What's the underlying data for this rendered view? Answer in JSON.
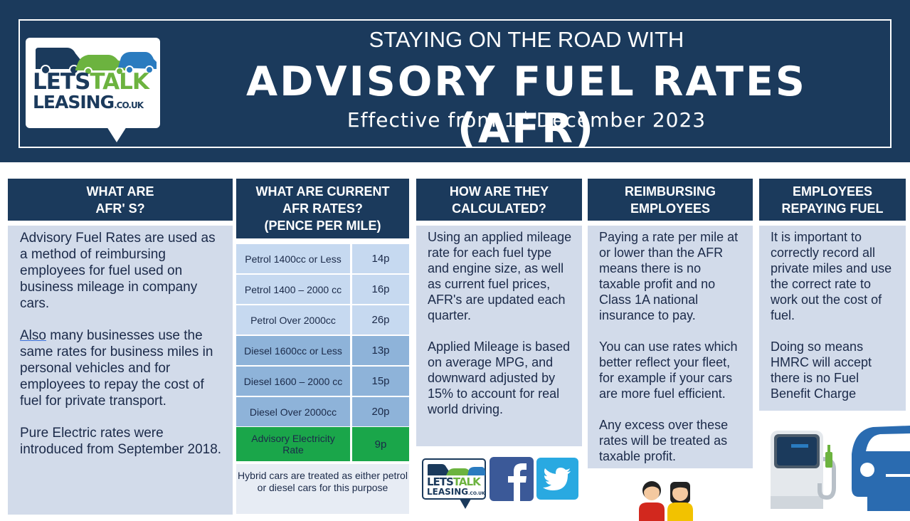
{
  "header": {
    "title_top": "STAYING ON THE ROAD WITH",
    "title_main": "ADVISORY FUEL RATES (AFR)",
    "subtitle_pre": "Effective from 1",
    "subtitle_sup": "st",
    "subtitle_post": " December 2023"
  },
  "logo": {
    "word1": "LETS",
    "word2": "TALK",
    "word3": "LEASING",
    "domain": ".CO.UK"
  },
  "columns": {
    "what_are": {
      "heading_line1": "WHAT ARE",
      "heading_line2": "AFR' S?",
      "para1": "Advisory Fuel Rates are  used as a method of  reimbursing employees for fuel used on business mileage in company cars.",
      "para2_link": "Also",
      "para2_rest": " many businesses use the same rates for business miles in personal vehicles and for employees to repay  the cost of fuel for private transport.",
      "para3": "Pure Electric rates were introduced from September 2018."
    },
    "current_rates": {
      "heading_line1": "WHAT ARE CURRENT",
      "heading_line2": "AFR RATES?",
      "heading_line3": "(PENCE PER MILE)",
      "rows": [
        {
          "name": "Petrol 1400cc or Less",
          "rate": "14p"
        },
        {
          "name": "Petrol 1400 – 2000 cc",
          "rate": "16p"
        },
        {
          "name": "Petrol Over 2000cc",
          "rate": "26p"
        },
        {
          "name": "Diesel 1600cc or Less",
          "rate": "13p"
        },
        {
          "name": "Diesel 1600 – 2000 cc",
          "rate": "15p"
        },
        {
          "name": "Diesel Over 2000cc",
          "rate": "20p"
        },
        {
          "name": "Advisory Electricity Rate",
          "rate": "9p"
        }
      ],
      "hybrid_note": "Hybrid cars are treated as either petrol or diesel cars for this purpose"
    },
    "calculated": {
      "heading_line1": "HOW ARE THEY",
      "heading_line2": "CALCULATED?",
      "para1": "Using an applied mileage rate for each fuel type and engine size, as well as current fuel prices, AFR's are updated each quarter.",
      "para2": "Applied Mileage is based on average MPG, and downward adjusted by 15% to account for real world driving."
    },
    "reimbursing": {
      "heading_line1": "REIMBURSING",
      "heading_line2": "EMPLOYEES",
      "para1": "Paying a rate per mile at or lower than the AFR means there is no taxable  profit and no Class 1A  national insurance to pay.",
      "para2": "You can use rates which better reflect your fleet, for example if your cars are more fuel efficient.",
      "para3": "Any excess over these rates will be treated as taxable profit."
    },
    "repaying": {
      "heading_line1": "EMPLOYEES",
      "heading_line2": "REPAYING FUEL",
      "para1": "It is important to correctly record all private miles and use the correct rate to work  out the cost of fuel.",
      "para2": "Doing so means HMRC  will accept there is no  Fuel Benefit Charge"
    }
  },
  "colors": {
    "navy": "#1b3a5c",
    "panel": "#d2dbea",
    "light_row": "#c6d9f0",
    "mid_row": "#8eb3d9",
    "electric_row": "#1aa64a",
    "logo_green": "#6cb33f"
  }
}
